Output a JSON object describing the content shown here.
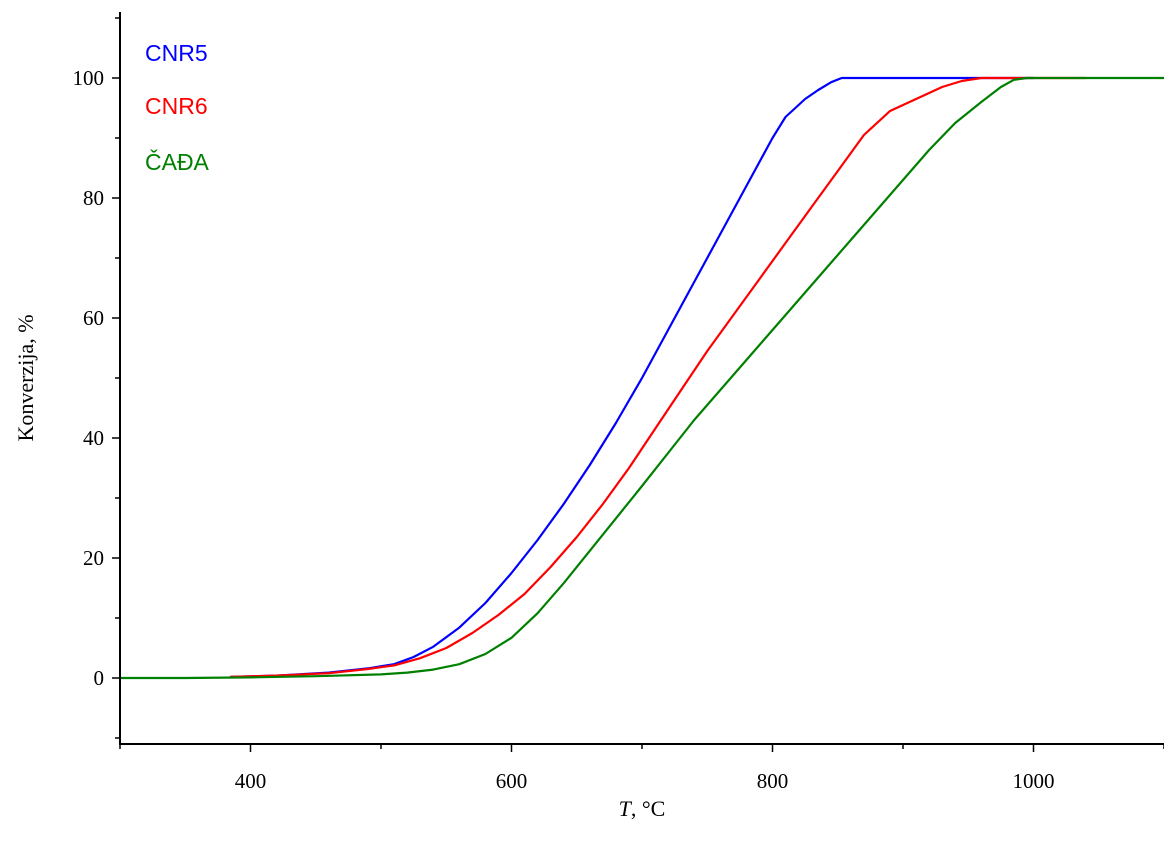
{
  "chart_data": {
    "type": "line",
    "xlabel_italic": "T",
    "xlabel_rest": ", °C",
    "ylabel": "Konverzija, %",
    "xlim": [
      300,
      1100
    ],
    "ylim": [
      -11,
      111
    ],
    "xticks": [
      400,
      600,
      800,
      1000
    ],
    "yticks": [
      0,
      20,
      40,
      60,
      80,
      100
    ],
    "legend_position": "top-left",
    "series": [
      {
        "name": "CNR5",
        "color": "#0000ff",
        "x": [
          385,
          420,
          460,
          490,
          510,
          525,
          540,
          560,
          580,
          600,
          620,
          640,
          660,
          680,
          700,
          720,
          740,
          760,
          780,
          800,
          810,
          820,
          825,
          835,
          845,
          853,
          900,
          1000
        ],
        "y": [
          0.2,
          0.4,
          0.9,
          1.6,
          2.3,
          3.5,
          5.2,
          8.4,
          12.5,
          17.5,
          23,
          29,
          35.5,
          42.5,
          50,
          58,
          66,
          74,
          82,
          90,
          93.5,
          95.5,
          96.5,
          98,
          99.3,
          100,
          100,
          100
        ]
      },
      {
        "name": "CNR6",
        "color": "#ff0000",
        "x": [
          385,
          420,
          460,
          490,
          510,
          530,
          550,
          570,
          590,
          610,
          630,
          650,
          670,
          690,
          710,
          730,
          750,
          770,
          790,
          810,
          830,
          850,
          870,
          890,
          900,
          915,
          930,
          945,
          960,
          980,
          1000,
          1040
        ],
        "y": [
          0.2,
          0.4,
          0.8,
          1.5,
          2.1,
          3.3,
          5,
          7.5,
          10.5,
          14,
          18.5,
          23.5,
          29,
          35,
          41.5,
          48,
          54.5,
          60.5,
          66.5,
          72.5,
          78.5,
          84.5,
          90.5,
          94.5,
          95.5,
          97,
          98.5,
          99.5,
          100,
          100,
          100,
          100
        ]
      },
      {
        "name": "ČAĐA",
        "color": "#008000",
        "x": [
          300,
          350,
          400,
          450,
          500,
          520,
          540,
          560,
          580,
          600,
          620,
          640,
          660,
          680,
          700,
          720,
          740,
          760,
          780,
          800,
          820,
          840,
          860,
          880,
          900,
          920,
          940,
          960,
          975,
          985,
          995,
          1010,
          1050,
          1100
        ],
        "y": [
          0,
          0,
          0.1,
          0.3,
          0.6,
          0.9,
          1.4,
          2.3,
          4,
          6.7,
          10.8,
          15.8,
          21.2,
          26.6,
          32,
          37.5,
          43,
          48,
          53,
          58,
          63,
          68,
          73,
          78,
          83,
          88,
          92.5,
          96,
          98.5,
          99.7,
          100,
          100,
          100,
          100
        ]
      }
    ]
  }
}
